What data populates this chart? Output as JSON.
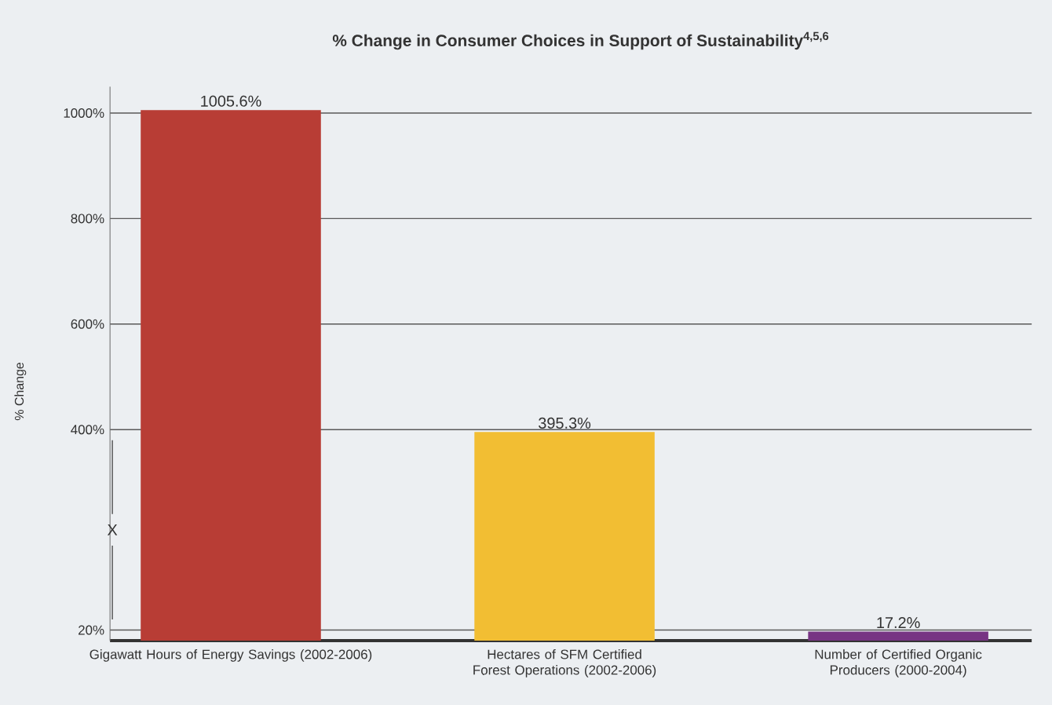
{
  "chart_data": {
    "type": "bar",
    "title": "% Change in Consumer Choices in Support of Sustainability$^{4,5,6}$",
    "ylabel": "% Change",
    "categories": [
      "Gigawatt Hours of Energy Savings (2002-2006)",
      "Hectares of SFM Certified Forest Operations (2002-2006)",
      "Number of Certified Organic Producers (2000-2004)"
    ],
    "values": [
      1005.6,
      395.3,
      17.2
    ],
    "colors": [
      "#b83d35",
      "#f2be33",
      "#773483"
    ],
    "value_labels": [
      "1005.6%",
      "395.3%",
      "17.2%"
    ],
    "ylim": [
      0,
      1050
    ],
    "yticks": [
      {
        "value": 20,
        "label": "20%"
      },
      {
        "value": 400,
        "label": "400%"
      },
      {
        "value": 600,
        "label": "600%"
      },
      {
        "value": 800,
        "label": "800%"
      },
      {
        "value": 1000,
        "label": "1000%"
      }
    ],
    "grid": "y",
    "annotations": [
      "X"
    ]
  }
}
